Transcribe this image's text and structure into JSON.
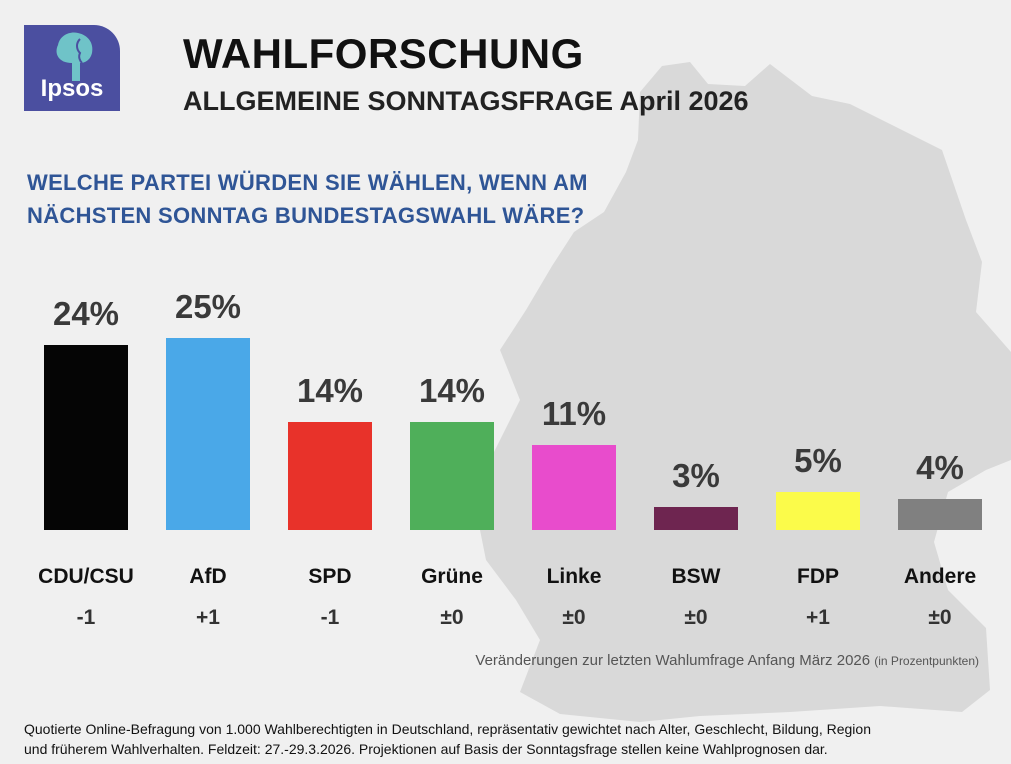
{
  "header": {
    "logo_text": "Ipsos",
    "title": "WAHLFORSCHUNG",
    "subtitle": "ALLGEMEINE SONNTAGSFRAGE April 2026"
  },
  "question": {
    "line1": "WELCHE PARTEI WÜRDEN SIE WÄHLEN, WENN AM",
    "line2": "NÄCHSTEN SONNTAG BUNDESTAGSWAHL WÄRE?"
  },
  "chart_data": {
    "type": "bar",
    "categories": [
      "CDU/CSU",
      "AfD",
      "SPD",
      "Grüne",
      "Linke",
      "BSW",
      "FDP",
      "Andere"
    ],
    "values": [
      24,
      25,
      14,
      14,
      11,
      3,
      5,
      4
    ],
    "value_labels": [
      "24%",
      "25%",
      "14%",
      "14%",
      "11%",
      "3%",
      "5%",
      "4%"
    ],
    "changes": [
      "-1",
      "+1",
      "-1",
      "±0",
      "±0",
      "±0",
      "+1",
      "±0"
    ],
    "colors": [
      "#050505",
      "#4aa8e8",
      "#e8322a",
      "#4faf5a",
      "#e84ccc",
      "#6e2550",
      "#fbfb4a",
      "#808080"
    ],
    "title": "WELCHE PARTEI WÜRDEN SIE WÄHLEN, WENN AM NÄCHSTEN SONNTAG BUNDESTAGSWAHL WÄRE?",
    "xlabel": "",
    "ylabel": "",
    "ylim": [
      0,
      25
    ],
    "grid": false,
    "legend": "none"
  },
  "note": {
    "main": "Veränderungen zur letzten Wahlumfrage Anfang März 2026",
    "unit": "(in Prozentpunkten)"
  },
  "footer": {
    "line1": "Quotierte Online-Befragung von 1.000 Wahlberechtigten in Deutschland, repräsentativ gewichtet nach Alter, Geschlecht, Bildung, Region",
    "line2": "und früherem Wahlverhalten. Feldzeit: 27.-29.3.2026. Projektionen auf Basis der Sonntagsfrage stellen keine Wahlprognosen dar."
  },
  "colors": {
    "background": "#f0f0f0",
    "map": "#d9d9d9",
    "logo": "#4b4fa0",
    "question": "#2f5596"
  }
}
